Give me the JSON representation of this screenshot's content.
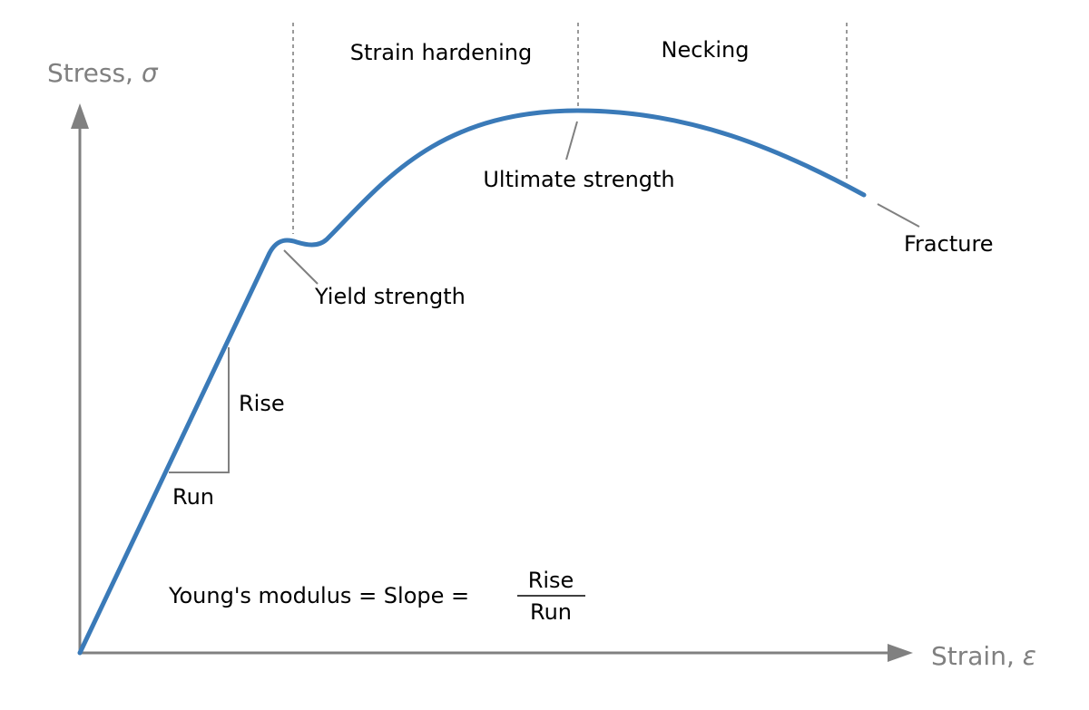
{
  "axes": {
    "y_label": "Stress, ",
    "y_symbol": "σ",
    "x_label": "Strain, ",
    "x_symbol": "ε"
  },
  "regions": {
    "strain_hardening": "Strain hardening",
    "necking": "Necking"
  },
  "points": {
    "yield_strength": "Yield strength",
    "ultimate_strength": "Ultimate strength",
    "fracture": "Fracture"
  },
  "slope_triangle": {
    "rise": "Rise",
    "run": "Run"
  },
  "formula": {
    "lhs": "Young's modulus = Slope = ",
    "numerator": "Rise",
    "denominator": "Run"
  },
  "colors": {
    "curve": "#3a7ab8",
    "axes": "#808080",
    "text": "#000000"
  }
}
